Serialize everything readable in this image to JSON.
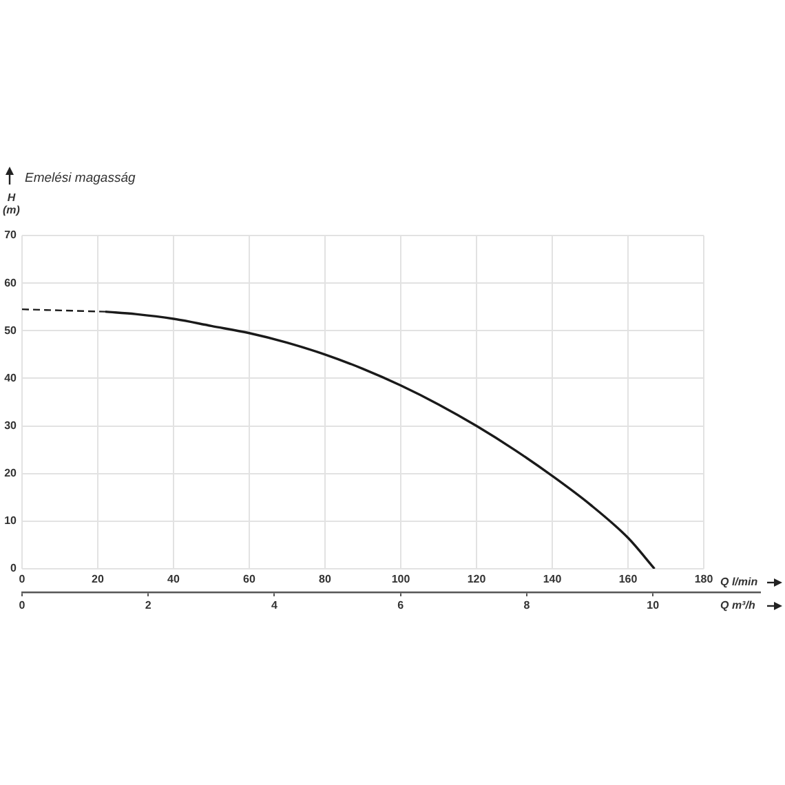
{
  "chart_data": {
    "type": "line",
    "title": "Emelési magasság",
    "ylabel": "H (m)",
    "xlabel": "Q l/min",
    "x2label": "Q m³/h",
    "xlim": [
      0,
      180
    ],
    "xticks": [
      0,
      20,
      40,
      60,
      80,
      100,
      120,
      140,
      160,
      180
    ],
    "x2lim": [
      0,
      11.7
    ],
    "x2ticks": [
      0,
      2,
      4,
      6,
      8,
      10
    ],
    "ylim": [
      0,
      70
    ],
    "yticks": [
      0,
      10,
      20,
      30,
      40,
      50,
      60,
      70
    ],
    "grid": true,
    "marker": "none",
    "series": [
      {
        "color": "#1a1a1a",
        "line_style": "dashed",
        "x": [
          0,
          22
        ],
        "values": [
          54.5,
          54
        ]
      },
      {
        "color": "#1a1a1a",
        "line_style": "solid",
        "x": [
          22,
          30,
          40,
          50,
          60,
          70,
          80,
          90,
          100,
          110,
          120,
          130,
          140,
          150,
          160,
          167
        ],
        "values": [
          54,
          53.5,
          52.5,
          51,
          49.5,
          47.5,
          45,
          42,
          38.5,
          34.5,
          30,
          25,
          19.5,
          13.5,
          6.5,
          0
        ]
      }
    ]
  }
}
